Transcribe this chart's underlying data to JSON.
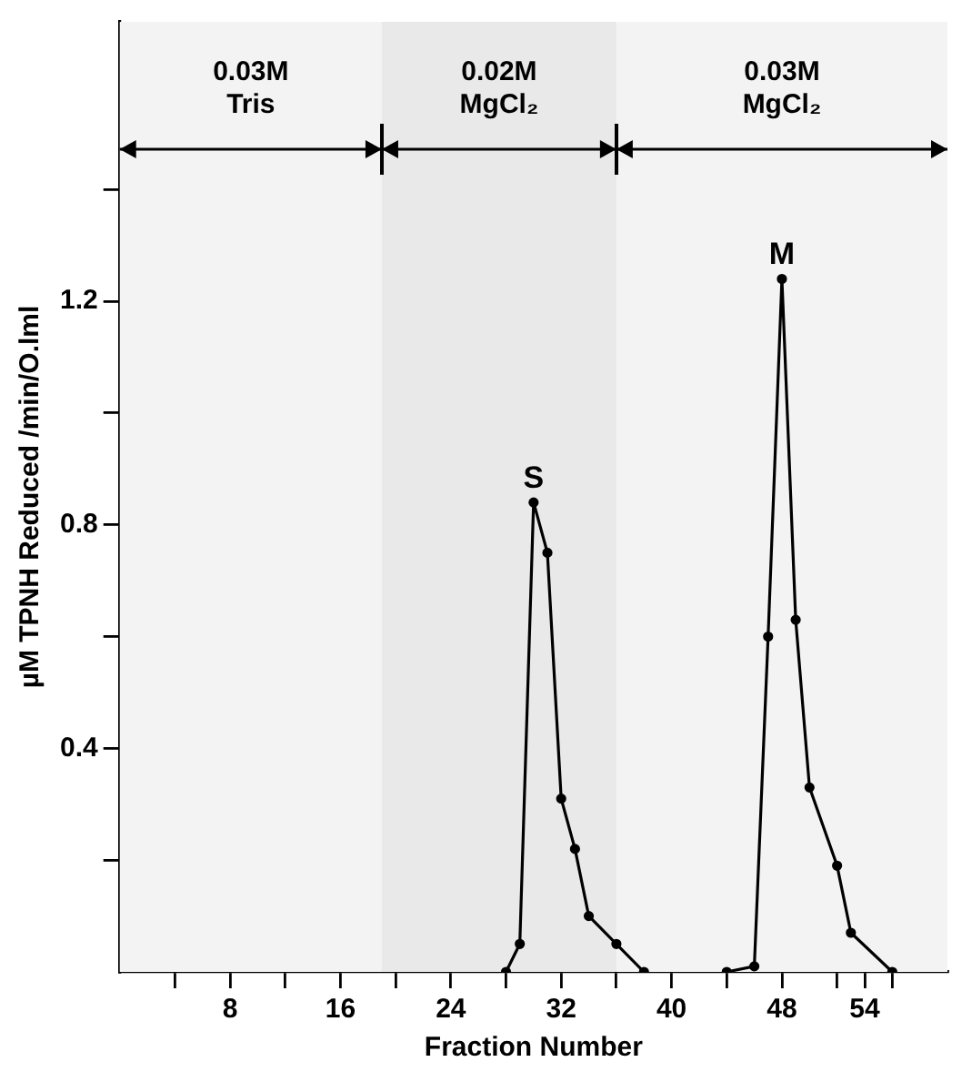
{
  "chart_data": {
    "type": "line",
    "xlabel": "Fraction Number",
    "ylabel": "µM TPNH Reduced /min/O.lml",
    "series": [
      {
        "color": "#000000",
        "x": [
          28,
          29,
          30,
          31,
          32,
          33,
          34,
          36,
          38
        ],
        "values": [
          0,
          0.05,
          0.84,
          0.75,
          0.31,
          0.22,
          0.1,
          0.05,
          0
        ]
      },
      {
        "color": "#000000",
        "x": [
          44,
          46,
          47,
          48,
          49,
          50,
          52,
          53,
          56
        ],
        "values": [
          0,
          0.01,
          0.6,
          1.24,
          0.63,
          0.33,
          0.19,
          0.07,
          0
        ]
      }
    ],
    "xlim": [
      0,
      60
    ],
    "xticks": [
      {
        "value": 4,
        "label": null
      },
      8,
      {
        "value": 12,
        "label": null
      },
      16,
      {
        "value": 20,
        "label": null
      },
      24,
      {
        "value": 28,
        "label": null
      },
      32,
      {
        "value": 36,
        "label": null
      },
      40,
      {
        "value": 44,
        "label": null
      },
      48,
      {
        "value": 52,
        "label": null
      },
      54,
      {
        "value": 56,
        "label": null
      }
    ],
    "ylim": [
      0,
      1.7
    ],
    "yticks": [
      {
        "value": 0.2,
        "label": null
      },
      0.4,
      {
        "value": 0.6,
        "label": null
      },
      0.8,
      {
        "value": 1.0,
        "label": null
      },
      1.2,
      {
        "value": 1.4,
        "label": null
      }
    ],
    "bands": [
      {
        "axis": "x",
        "from": 0,
        "to": 19,
        "label": "0.03M Tris",
        "color": "#f3f3f3"
      },
      {
        "axis": "x",
        "from": 19,
        "to": 36,
        "label": "0.02M MgCl₂",
        "color": "#e9e9e9"
      },
      {
        "axis": "x",
        "from": 36,
        "to": 60,
        "label": "0.03M MgCl₂",
        "color": "#f3f3f3"
      }
    ],
    "annotations": [
      {
        "text": "S",
        "x": 30,
        "y": 0.84
      },
      {
        "text": "M",
        "x": 48,
        "y": 1.24
      }
    ],
    "marker": "circle",
    "line_style": "solid",
    "grid": false,
    "legend": false
  }
}
